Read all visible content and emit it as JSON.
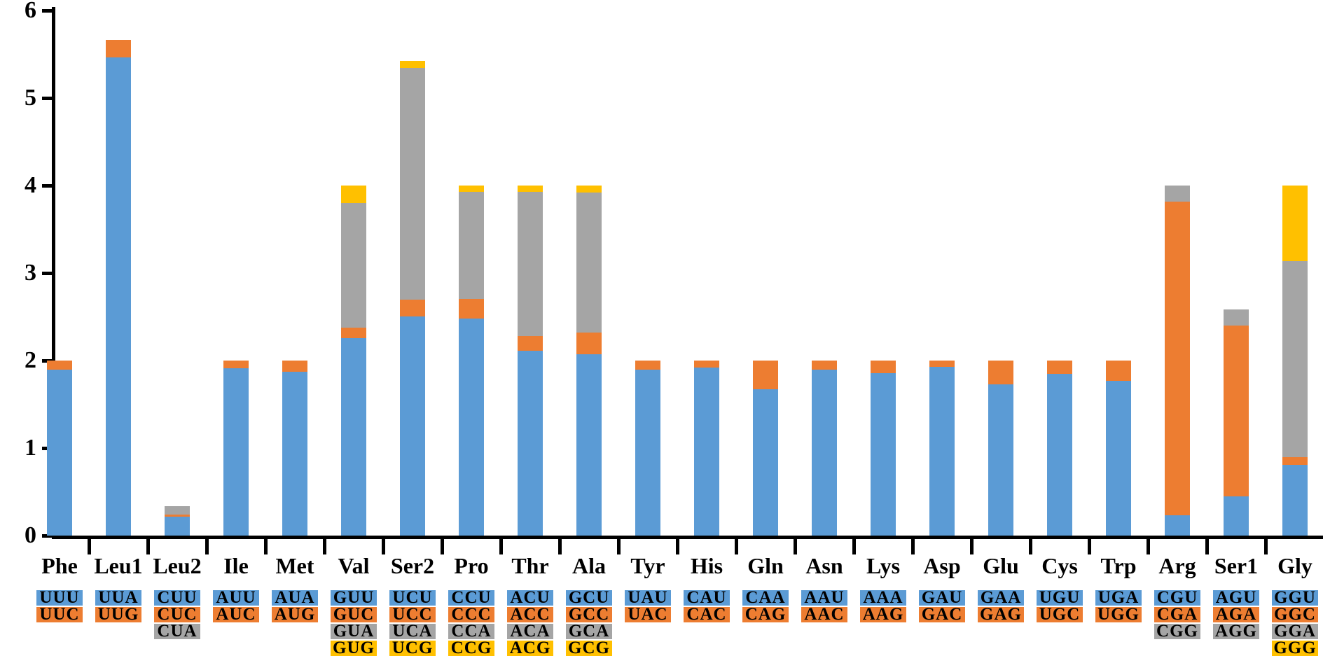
{
  "chart_data": {
    "type": "bar",
    "subtype": "stacked-vertical",
    "title": "",
    "xlabel": "",
    "ylabel": "",
    "ylim": [
      0,
      6
    ],
    "yticks": [
      "0",
      "1",
      "2",
      "3",
      "4",
      "5",
      "6"
    ],
    "grid": "off",
    "legend": "none",
    "segment_palette": [
      "#5B9BD5",
      "#ED7D31",
      "#A5A5A5",
      "#FFC000"
    ],
    "axis_color": "#000000",
    "groups": [
      {
        "label": "Phe",
        "codons": [
          {
            "codon": "UUU",
            "value": 1.9
          },
          {
            "codon": "UUC",
            "value": 0.1
          }
        ]
      },
      {
        "label": "Leu1",
        "codons": [
          {
            "codon": "UUA",
            "value": 5.46
          },
          {
            "codon": "UUG",
            "value": 0.2
          }
        ]
      },
      {
        "label": "Leu2",
        "codons": [
          {
            "codon": "CUU",
            "value": 0.22
          },
          {
            "codon": "CUC",
            "value": 0.02
          },
          {
            "codon": "CUA",
            "value": 0.1
          }
        ]
      },
      {
        "label": "Ile",
        "codons": [
          {
            "codon": "AUU",
            "value": 1.91
          },
          {
            "codon": "AUC",
            "value": 0.09
          }
        ]
      },
      {
        "label": "Met",
        "codons": [
          {
            "codon": "AUA",
            "value": 1.87
          },
          {
            "codon": "AUG",
            "value": 0.13
          }
        ]
      },
      {
        "label": "Val",
        "codons": [
          {
            "codon": "GUU",
            "value": 2.26
          },
          {
            "codon": "GUC",
            "value": 0.12
          },
          {
            "codon": "GUA",
            "value": 1.42
          },
          {
            "codon": "GUG",
            "value": 0.2
          }
        ]
      },
      {
        "label": "Ser2",
        "codons": [
          {
            "codon": "UCU",
            "value": 2.5
          },
          {
            "codon": "UCC",
            "value": 0.19
          },
          {
            "codon": "UCA",
            "value": 2.65
          },
          {
            "codon": "UCG",
            "value": 0.08
          }
        ]
      },
      {
        "label": "Pro",
        "codons": [
          {
            "codon": "CCU",
            "value": 2.49
          },
          {
            "codon": "CCC",
            "value": 0.22
          },
          {
            "codon": "CCA",
            "value": 1.22
          },
          {
            "codon": "CCG",
            "value": 0.07
          }
        ]
      },
      {
        "label": "Thr",
        "codons": [
          {
            "codon": "ACU",
            "value": 2.11
          },
          {
            "codon": "ACC",
            "value": 0.17
          },
          {
            "codon": "ACA",
            "value": 1.65
          },
          {
            "codon": "ACG",
            "value": 0.07
          }
        ]
      },
      {
        "label": "Ala",
        "codons": [
          {
            "codon": "GCU",
            "value": 2.07
          },
          {
            "codon": "GCC",
            "value": 0.25
          },
          {
            "codon": "GCA",
            "value": 1.6
          },
          {
            "codon": "GCG",
            "value": 0.08
          }
        ]
      },
      {
        "label": "Tyr",
        "codons": [
          {
            "codon": "UAU",
            "value": 1.9
          },
          {
            "codon": "UAC",
            "value": 0.1
          }
        ]
      },
      {
        "label": "His",
        "codons": [
          {
            "codon": "CAU",
            "value": 1.92
          },
          {
            "codon": "CAC",
            "value": 0.08
          }
        ]
      },
      {
        "label": "Gln",
        "codons": [
          {
            "codon": "CAA",
            "value": 1.67
          },
          {
            "codon": "CAG",
            "value": 0.33
          }
        ]
      },
      {
        "label": "Asn",
        "codons": [
          {
            "codon": "AAU",
            "value": 1.9
          },
          {
            "codon": "AAC",
            "value": 0.1
          }
        ]
      },
      {
        "label": "Lys",
        "codons": [
          {
            "codon": "AAA",
            "value": 1.86
          },
          {
            "codon": "AAG",
            "value": 0.14
          }
        ]
      },
      {
        "label": "Asp",
        "codons": [
          {
            "codon": "GAU",
            "value": 1.93
          },
          {
            "codon": "GAC",
            "value": 0.07
          }
        ]
      },
      {
        "label": "Glu",
        "codons": [
          {
            "codon": "GAA",
            "value": 1.73
          },
          {
            "codon": "GAG",
            "value": 0.27
          }
        ]
      },
      {
        "label": "Cys",
        "codons": [
          {
            "codon": "UGU",
            "value": 1.85
          },
          {
            "codon": "UGC",
            "value": 0.15
          }
        ]
      },
      {
        "label": "Trp",
        "codons": [
          {
            "codon": "UGA",
            "value": 1.77
          },
          {
            "codon": "UGG",
            "value": 0.23
          }
        ]
      },
      {
        "label": "Arg",
        "codons": [
          {
            "codon": "CGU",
            "value": 0.23
          },
          {
            "codon": "CGA",
            "value": 3.59
          },
          {
            "codon": "CGG",
            "value": 0.18
          }
        ]
      },
      {
        "label": "Ser1",
        "codons": [
          {
            "codon": "AGU",
            "value": 0.45
          },
          {
            "codon": "AGA",
            "value": 1.95
          },
          {
            "codon": "AGG",
            "value": 0.18
          }
        ]
      },
      {
        "label": "Gly",
        "codons": [
          {
            "codon": "GGU",
            "value": 0.81
          },
          {
            "codon": "GGC",
            "value": 0.09
          },
          {
            "codon": "GGA",
            "value": 2.24
          },
          {
            "codon": "GGG",
            "value": 0.86
          }
        ]
      }
    ]
  }
}
